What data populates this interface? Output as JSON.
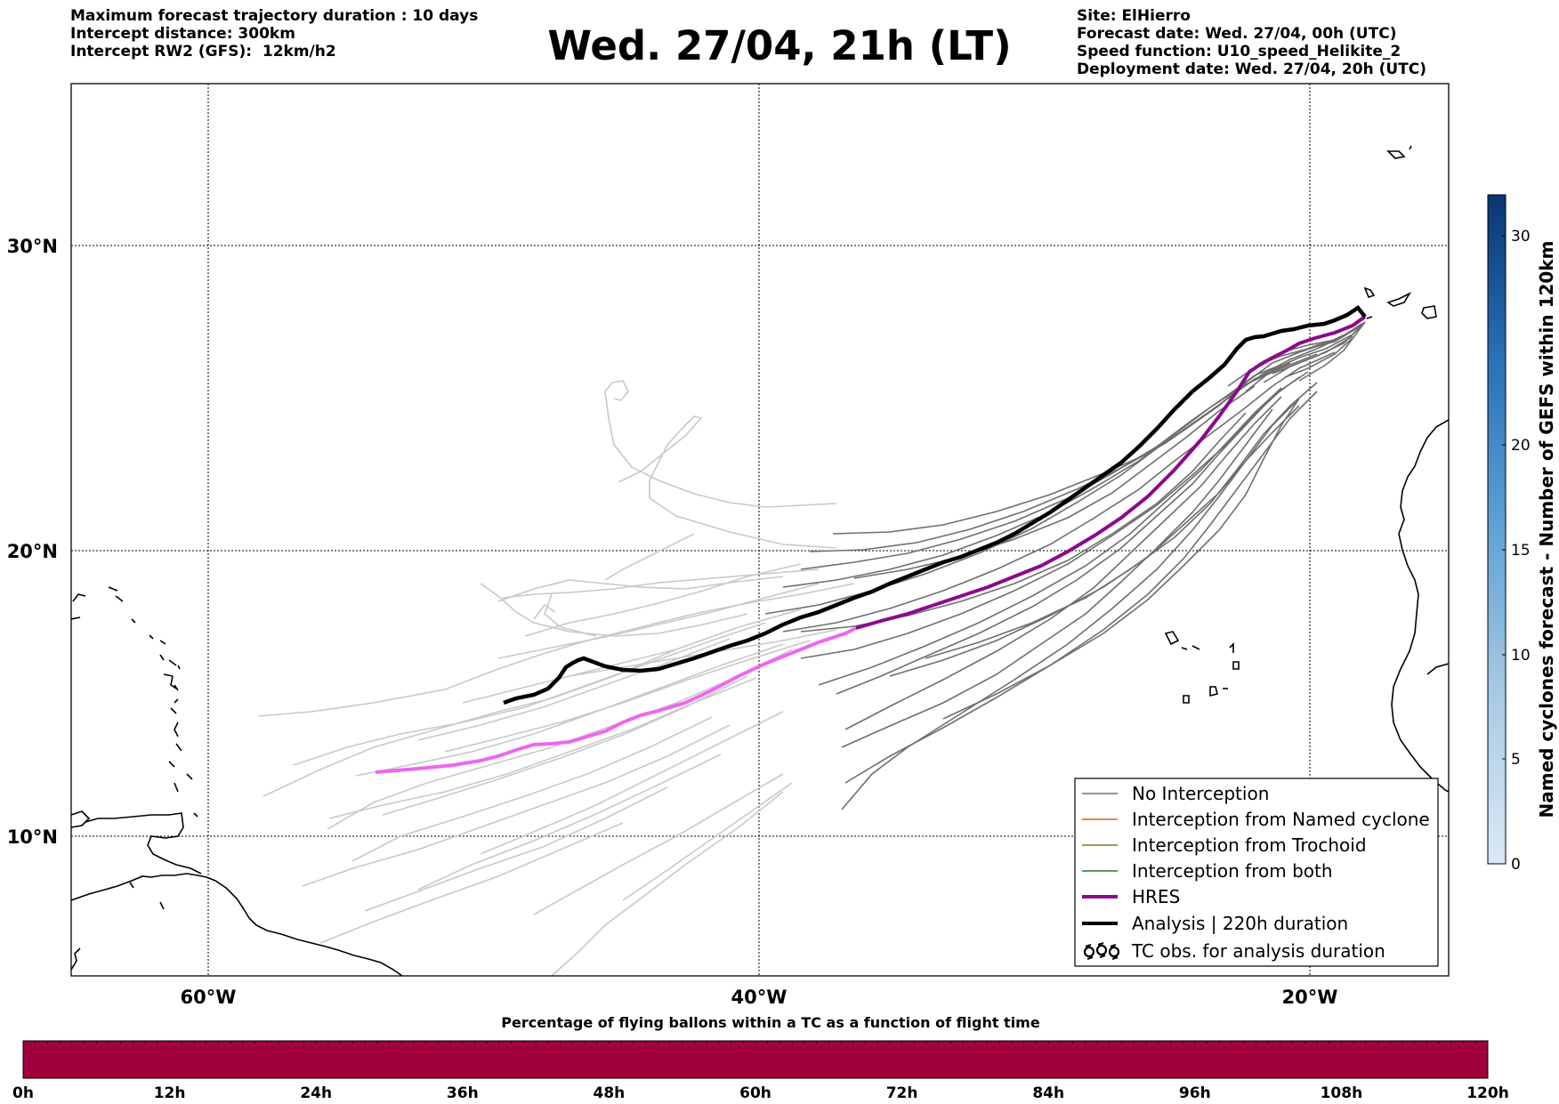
{
  "header": {
    "left": [
      "Maximum forecast trajectory duration : 10 days",
      "Intercept distance: 300km",
      "Intercept RW2 (GFS):  12km/h2"
    ],
    "title": "Wed. 27/04, 21h (LT)",
    "right": [
      "Site: ElHierro",
      "Forecast date: Wed. 27/04, 00h (UTC)",
      "Speed function: U10_speed_Helikite_2",
      "Deployment date: Wed. 27/04, 20h (UTC)"
    ]
  },
  "map": {
    "lon_labels": [
      "60°W",
      "40°W",
      "20°W"
    ],
    "lat_labels": [
      "30°N",
      "20°N",
      "10°N"
    ],
    "colors": {
      "no_interception": "#6e6e6e",
      "older_tracks": "#c8c8c8",
      "hres_recent": "#8b0a8b",
      "hres_old": "#ee66ee",
      "analysis": "#000000"
    }
  },
  "legend": {
    "items": [
      {
        "label": "No Interception",
        "color": "#707070",
        "style": "line"
      },
      {
        "label": "Interception from Named cyclone",
        "color": "#e8531c",
        "style": "line"
      },
      {
        "label": "Interception from Trochoid",
        "color": "#7b7b1e",
        "style": "line"
      },
      {
        "label": "Interception from both",
        "color": "#1e7b1e",
        "style": "line"
      },
      {
        "label": "HRES",
        "color": "#8b0a8b",
        "style": "thick"
      },
      {
        "label": "Analysis | 220h duration",
        "color": "#000000",
        "style": "thick"
      },
      {
        "label": "TC obs. for analysis duration",
        "color": "#000000",
        "style": "symbol"
      }
    ]
  },
  "colorbar": {
    "label": "Named cyclones forecast - Number of GEFS within 120km",
    "ticks": [
      "0",
      "5",
      "10",
      "15",
      "20",
      "30"
    ]
  },
  "bottom_bar": {
    "title": "Percentage of flying ballons within a TC as a function of flight time",
    "color": "#a0003c",
    "ticks": [
      "0h",
      "12h",
      "24h",
      "36h",
      "48h",
      "60h",
      "72h",
      "84h",
      "96h",
      "108h",
      "120h"
    ]
  }
}
